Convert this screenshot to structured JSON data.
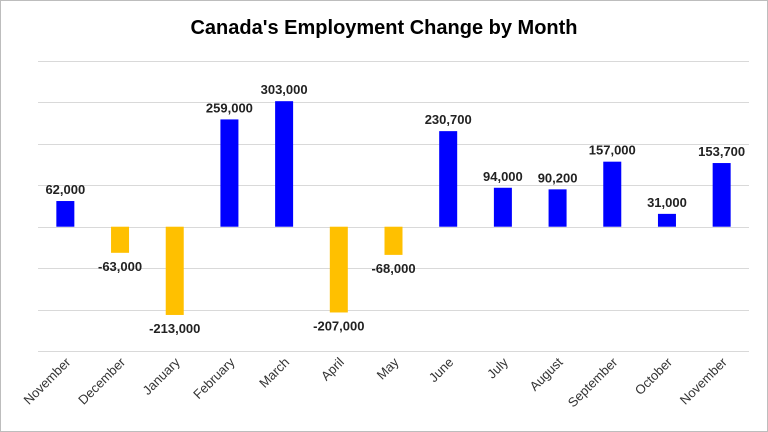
{
  "chart_data": {
    "type": "bar",
    "title": "Canada's Employment Change by Month",
    "categories": [
      "November",
      "December",
      "January",
      "February",
      "March",
      "April",
      "May",
      "June",
      "July",
      "August",
      "September",
      "October",
      "November"
    ],
    "values": [
      62000,
      -63000,
      -213000,
      259000,
      303000,
      -207000,
      -68000,
      230700,
      94000,
      90200,
      157000,
      31000,
      153700
    ],
    "data_labels": [
      "62,000",
      "-63,000",
      "-213,000",
      "259,000",
      "303,000",
      "-207,000",
      "-68,000",
      "230,700",
      "94,000",
      "90,200",
      "157,000",
      "31,000",
      "153,700"
    ],
    "ylim": [
      -300000,
      400000
    ],
    "grid": true,
    "colors": {
      "positive": "#0000ff",
      "negative": "#ffc000"
    }
  }
}
